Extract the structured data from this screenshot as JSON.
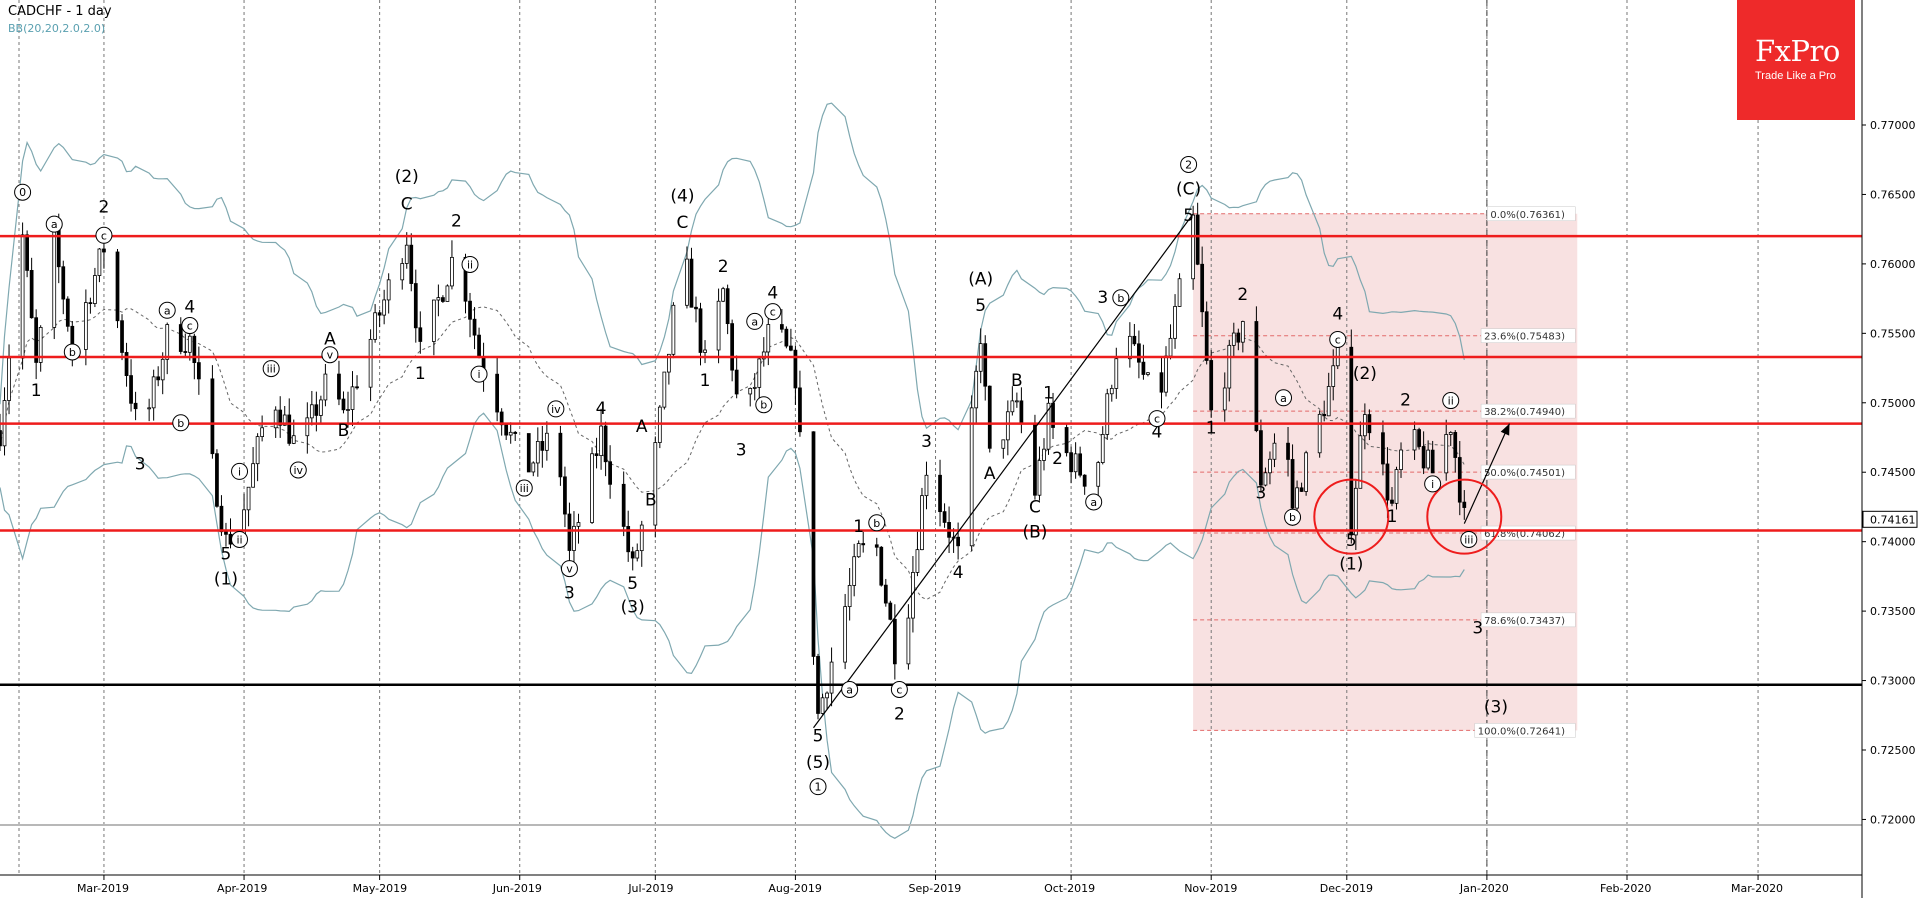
{
  "header": {
    "title": "CADCHF - 1 day",
    "indicator": "BB(20,20,2.0,2.0)"
  },
  "logo": {
    "brand": "FxPro",
    "tagline": "Trade Like a Pro"
  },
  "colors": {
    "red_line": "#ee1c1c",
    "band": "#7fa8b0",
    "fib_zone": "#f6dada",
    "fib_dash": "#e26a6a"
  },
  "chart_data": {
    "type": "candlestick",
    "symbol": "CADCHF",
    "timeframe": "1 day",
    "ylim": [
      0.716,
      0.779
    ],
    "x_range": [
      "2019-02-06",
      "2020-03-24"
    ],
    "y_ticks": [
      "0.77000",
      "0.76500",
      "0.76000",
      "0.75500",
      "0.75000",
      "0.74500",
      "0.74000",
      "0.73500",
      "0.73000",
      "0.72500",
      "0.72000"
    ],
    "x_ticks": [
      {
        "label": "Mar-2019",
        "date": "2019-03-01"
      },
      {
        "label": "Apr-2019",
        "date": "2019-04-01"
      },
      {
        "label": "May-2019",
        "date": "2019-05-01"
      },
      {
        "label": "Jun-2019",
        "date": "2019-06-01"
      },
      {
        "label": "Jul-2019",
        "date": "2019-07-01"
      },
      {
        "label": "Aug-2019",
        "date": "2019-08-01"
      },
      {
        "label": "Sep-2019",
        "date": "2019-09-01"
      },
      {
        "label": "Oct-2019",
        "date": "2019-10-01"
      },
      {
        "label": "Nov-2019",
        "date": "2019-11-01"
      },
      {
        "label": "Dec-2019",
        "date": "2019-12-01"
      },
      {
        "label": "Jan-2020",
        "date": "2020-01-01"
      },
      {
        "label": "Feb-2020",
        "date": "2020-02-01"
      },
      {
        "label": "Mar-2020",
        "date": "2020-03-01"
      }
    ],
    "current_price": "0.74161",
    "current_price_value": 0.74161,
    "horizontal_lines": [
      {
        "price": 0.762,
        "color": "red"
      },
      {
        "price": 0.7533,
        "color": "red"
      },
      {
        "price": 0.7485,
        "color": "red"
      },
      {
        "price": 0.7408,
        "color": "red"
      },
      {
        "price": 0.7297,
        "color": "black"
      },
      {
        "price": 0.7196,
        "color": "grey"
      }
    ],
    "fibonacci": {
      "start_date": "2019-10-28",
      "end_date": "2020-01-21",
      "high": 0.76361,
      "low": 0.72641,
      "levels": [
        {
          "label": "0.0%(0.76361)",
          "price": 0.76361
        },
        {
          "label": "23.6%(0.75483)",
          "price": 0.75483
        },
        {
          "label": "38.2%(0.74940)",
          "price": 0.7494
        },
        {
          "label": "50.0%(0.74501)",
          "price": 0.74501
        },
        {
          "label": "61.8%(0.74062)",
          "price": 0.74062
        },
        {
          "label": "78.6%(0.73437)",
          "price": 0.73437
        },
        {
          "label": "100.0%(0.72641)",
          "price": 0.72641
        }
      ]
    },
    "trendlines": [
      {
        "from": {
          "date": "2019-08-05",
          "price": 0.7266
        },
        "to": {
          "date": "2019-10-28",
          "price": 0.7636
        }
      }
    ],
    "projection_arrow": {
      "from": {
        "date": "2019-12-27",
        "price": 0.7413
      },
      "to": {
        "date": "2020-01-06",
        "price": 0.7485
      }
    },
    "vertical_marker_date": "2020-01-01",
    "circles": [
      {
        "date": "2019-12-02",
        "price": 0.7418
      },
      {
        "date": "2019-12-27",
        "price": 0.7418
      }
    ],
    "wave_labels": [
      {
        "text": "0",
        "date": "2019-02-11",
        "price": 0.7648,
        "circled": true
      },
      {
        "text": "a",
        "date": "2019-02-18",
        "price": 0.7625,
        "circled": true
      },
      {
        "text": "b",
        "date": "2019-02-22",
        "price": 0.7533,
        "circled": true
      },
      {
        "text": "1",
        "date": "2019-02-14",
        "price": 0.7505,
        "circled": false
      },
      {
        "text": "2",
        "date": "2019-03-01",
        "price": 0.7637,
        "circled": false
      },
      {
        "text": "c",
        "date": "2019-03-01",
        "price": 0.7617,
        "circled": true
      },
      {
        "text": "3",
        "date": "2019-03-09",
        "price": 0.7452,
        "circled": false
      },
      {
        "text": "a",
        "date": "2019-03-15",
        "price": 0.7563,
        "circled": true
      },
      {
        "text": "4",
        "date": "2019-03-20",
        "price": 0.7565,
        "circled": false
      },
      {
        "text": "c",
        "date": "2019-03-20",
        "price": 0.7552,
        "circled": true
      },
      {
        "text": "b",
        "date": "2019-03-18",
        "price": 0.7482,
        "circled": true
      },
      {
        "text": "5",
        "date": "2019-03-28",
        "price": 0.7387,
        "circled": false
      },
      {
        "text": "(1)",
        "date": "2019-03-28",
        "price": 0.7369,
        "circled": false
      },
      {
        "text": "i",
        "date": "2019-03-31",
        "price": 0.7447,
        "circled": true
      },
      {
        "text": "ii",
        "date": "2019-03-31",
        "price": 0.7398,
        "circled": true
      },
      {
        "text": "iii",
        "date": "2019-04-07",
        "price": 0.7521,
        "circled": true
      },
      {
        "text": "iv",
        "date": "2019-04-13",
        "price": 0.7448,
        "circled": true
      },
      {
        "text": "B",
        "date": "2019-04-23",
        "price": 0.7476,
        "circled": false
      },
      {
        "text": "A",
        "date": "2019-04-20",
        "price": 0.7542,
        "circled": false
      },
      {
        "text": "v",
        "date": "2019-04-20",
        "price": 0.7531,
        "circled": true
      },
      {
        "text": "(2)",
        "date": "2019-05-07",
        "price": 0.7659,
        "circled": false
      },
      {
        "text": "C",
        "date": "2019-05-07",
        "price": 0.7639,
        "circled": false
      },
      {
        "text": "2",
        "date": "2019-05-18",
        "price": 0.7627,
        "circled": false
      },
      {
        "text": "ii",
        "date": "2019-05-21",
        "price": 0.7596,
        "circled": true
      },
      {
        "text": "1",
        "date": "2019-05-10",
        "price": 0.7517,
        "circled": false
      },
      {
        "text": "i",
        "date": "2019-05-23",
        "price": 0.7517,
        "circled": true
      },
      {
        "text": "iv",
        "date": "2019-06-09",
        "price": 0.7492,
        "circled": true
      },
      {
        "text": "iii",
        "date": "2019-06-02",
        "price": 0.7435,
        "circled": true
      },
      {
        "text": "v",
        "date": "2019-06-12",
        "price": 0.7377,
        "circled": true
      },
      {
        "text": "3",
        "date": "2019-06-12",
        "price": 0.7359,
        "circled": false
      },
      {
        "text": "4",
        "date": "2019-06-19",
        "price": 0.7492,
        "circled": false
      },
      {
        "text": "A",
        "date": "2019-06-28",
        "price": 0.7479,
        "circled": false
      },
      {
        "text": "B",
        "date": "2019-06-30",
        "price": 0.7426,
        "circled": false
      },
      {
        "text": "5",
        "date": "2019-06-26",
        "price": 0.7366,
        "circled": false
      },
      {
        "text": "(3)",
        "date": "2019-06-26",
        "price": 0.7349,
        "circled": false
      },
      {
        "text": "(4)",
        "date": "2019-07-07",
        "price": 0.7645,
        "circled": false
      },
      {
        "text": "C",
        "date": "2019-07-07",
        "price": 0.7626,
        "circled": false
      },
      {
        "text": "2",
        "date": "2019-07-16",
        "price": 0.7594,
        "circled": false
      },
      {
        "text": "4",
        "date": "2019-07-27",
        "price": 0.7575,
        "circled": false
      },
      {
        "text": "a",
        "date": "2019-07-23",
        "price": 0.7555,
        "circled": true
      },
      {
        "text": "c",
        "date": "2019-07-27",
        "price": 0.7562,
        "circled": true
      },
      {
        "text": "1",
        "date": "2019-07-12",
        "price": 0.7512,
        "circled": false
      },
      {
        "text": "b",
        "date": "2019-07-25",
        "price": 0.7495,
        "circled": true
      },
      {
        "text": "3",
        "date": "2019-07-20",
        "price": 0.7462,
        "circled": false
      },
      {
        "text": "1",
        "date": "2019-08-15",
        "price": 0.7407,
        "circled": false
      },
      {
        "text": "b",
        "date": "2019-08-19",
        "price": 0.741,
        "circled": true
      },
      {
        "text": "5",
        "date": "2019-08-06",
        "price": 0.7256,
        "circled": false
      },
      {
        "text": "(5)",
        "date": "2019-08-06",
        "price": 0.7237,
        "circled": false
      },
      {
        "text": "1",
        "date": "2019-08-06",
        "price": 0.722,
        "circled": true
      },
      {
        "text": "a",
        "date": "2019-08-13",
        "price": 0.729,
        "circled": true
      },
      {
        "text": "c",
        "date": "2019-08-24",
        "price": 0.729,
        "circled": true
      },
      {
        "text": "2",
        "date": "2019-08-24",
        "price": 0.7272,
        "circled": false
      },
      {
        "text": "3",
        "date": "2019-08-30",
        "price": 0.7468,
        "circled": false
      },
      {
        "text": "4",
        "date": "2019-09-06",
        "price": 0.7374,
        "circled": false
      },
      {
        "text": "(A)",
        "date": "2019-09-11",
        "price": 0.7585,
        "circled": false
      },
      {
        "text": "5",
        "date": "2019-09-11",
        "price": 0.7566,
        "circled": false
      },
      {
        "text": "A",
        "date": "2019-09-13",
        "price": 0.7445,
        "circled": false
      },
      {
        "text": "B",
        "date": "2019-09-19",
        "price": 0.7512,
        "circled": false
      },
      {
        "text": "C",
        "date": "2019-09-23",
        "price": 0.7421,
        "circled": false
      },
      {
        "text": "(B)",
        "date": "2019-09-23",
        "price": 0.7403,
        "circled": false
      },
      {
        "text": "1",
        "date": "2019-09-26",
        "price": 0.7503,
        "circled": false
      },
      {
        "text": "2",
        "date": "2019-09-28",
        "price": 0.7456,
        "circled": false
      },
      {
        "text": "3",
        "date": "2019-10-08",
        "price": 0.7572,
        "circled": false
      },
      {
        "text": "a",
        "date": "2019-10-06",
        "price": 0.7425,
        "circled": true
      },
      {
        "text": "b",
        "date": "2019-10-12",
        "price": 0.7572,
        "circled": true
      },
      {
        "text": "4",
        "date": "2019-10-20",
        "price": 0.7475,
        "circled": false
      },
      {
        "text": "c",
        "date": "2019-10-20",
        "price": 0.7485,
        "circled": true
      },
      {
        "text": "2",
        "date": "2019-10-27",
        "price": 0.7668,
        "circled": true
      },
      {
        "text": "(C)",
        "date": "2019-10-27",
        "price": 0.765,
        "circled": false
      },
      {
        "text": "5",
        "date": "2019-10-27",
        "price": 0.7631,
        "circled": false
      },
      {
        "text": "1",
        "date": "2019-11-01",
        "price": 0.7478,
        "circled": false
      },
      {
        "text": "2",
        "date": "2019-11-08",
        "price": 0.7574,
        "circled": false
      },
      {
        "text": "3",
        "date": "2019-11-12",
        "price": 0.7431,
        "circled": false
      },
      {
        "text": "a",
        "date": "2019-11-17",
        "price": 0.75,
        "circled": true
      },
      {
        "text": "b",
        "date": "2019-11-19",
        "price": 0.7414,
        "circled": true
      },
      {
        "text": "4",
        "date": "2019-11-29",
        "price": 0.756,
        "circled": false
      },
      {
        "text": "c",
        "date": "2019-11-29",
        "price": 0.7542,
        "circled": true
      },
      {
        "text": "(2)",
        "date": "2019-12-05",
        "price": 0.7517,
        "circled": false
      },
      {
        "text": "5",
        "date": "2019-12-02",
        "price": 0.7397,
        "circled": false
      },
      {
        "text": "(1)",
        "date": "2019-12-02",
        "price": 0.738,
        "circled": false
      },
      {
        "text": "2",
        "date": "2019-12-14",
        "price": 0.7498,
        "circled": false
      },
      {
        "text": "1",
        "date": "2019-12-11",
        "price": 0.7414,
        "circled": false
      },
      {
        "text": "ii",
        "date": "2019-12-24",
        "price": 0.7498,
        "circled": true
      },
      {
        "text": "i",
        "date": "2019-12-20",
        "price": 0.7438,
        "circled": true
      },
      {
        "text": "iii",
        "date": "2019-12-28",
        "price": 0.7398,
        "circled": true
      },
      {
        "text": "3",
        "date": "2019-12-30",
        "price": 0.7334,
        "circled": false
      },
      {
        "text": "(3)",
        "date": "2020-01-03",
        "price": 0.7277,
        "circled": false
      }
    ]
  }
}
